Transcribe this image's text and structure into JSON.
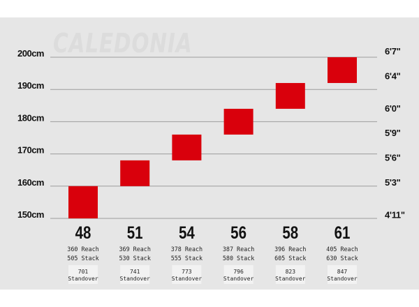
{
  "watermark": "CALEDONIA",
  "chart_data": {
    "type": "bar",
    "title": "",
    "xlabel": "",
    "ylabel": "",
    "y_unit_left": "cm",
    "ylim": [
      150,
      200
    ],
    "grid": true,
    "left_ticks": [
      "200cm",
      "190cm",
      "180cm",
      "170cm",
      "160cm",
      "150cm"
    ],
    "left_tick_values": [
      200,
      190,
      180,
      170,
      160,
      150
    ],
    "right_ticks": [
      "6'7\"",
      "6'4\"",
      "6'0\"",
      "5'9\"",
      "5'6\"",
      "5'3\"",
      "4'11\""
    ],
    "right_tick_values": [
      200.7,
      193,
      182.9,
      175.3,
      167.6,
      160,
      149.9
    ],
    "categories": [
      "48",
      "51",
      "54",
      "56",
      "58",
      "61"
    ],
    "rider_height_ranges": [
      [
        150,
        160
      ],
      [
        160,
        168
      ],
      [
        168,
        176
      ],
      [
        176,
        184
      ],
      [
        184,
        192
      ],
      [
        192,
        200
      ]
    ],
    "bar_color": "#d9000c",
    "geometry": [
      {
        "size": "48",
        "reach": "360 Reach",
        "stack": "505 Stack",
        "standover": "701",
        "standover_label": "Standover"
      },
      {
        "size": "51",
        "reach": "369 Reach",
        "stack": "530 Stack",
        "standover": "741",
        "standover_label": "Standover"
      },
      {
        "size": "54",
        "reach": "378 Reach",
        "stack": "555 Stack",
        "standover": "773",
        "standover_label": "Standover"
      },
      {
        "size": "56",
        "reach": "387 Reach",
        "stack": "580 Stack",
        "standover": "796",
        "standover_label": "Standover"
      },
      {
        "size": "58",
        "reach": "396 Reach",
        "stack": "605 Stack",
        "standover": "823",
        "standover_label": "Standover"
      },
      {
        "size": "61",
        "reach": "405 Reach",
        "stack": "630 Stack",
        "standover": "847",
        "standover_label": "Standover"
      }
    ]
  }
}
